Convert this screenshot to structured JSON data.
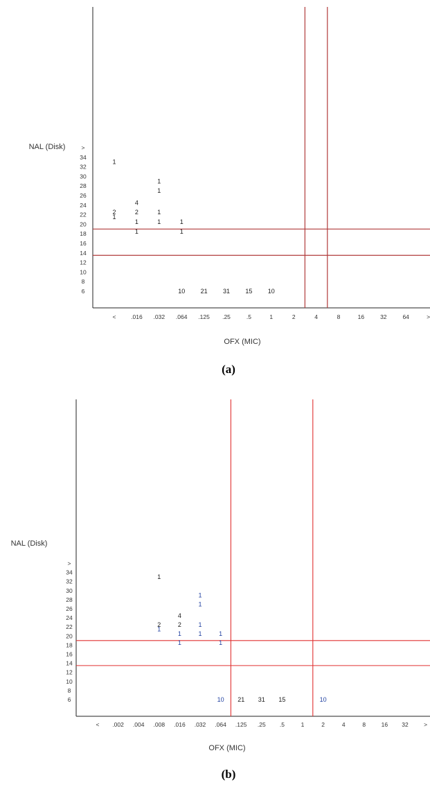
{
  "chart_data": [
    {
      "type": "scatter",
      "caption": "(a)",
      "xlabel": "OFX (MIC)",
      "ylabel": "NAL (Disk)",
      "x_ticks": [
        "<",
        ".016",
        ".032",
        ".064",
        ".125",
        ".25",
        ".5",
        "1",
        "2",
        "4",
        "8",
        "16",
        "32",
        "64",
        ">"
      ],
      "y_ticks": [
        "6",
        "8",
        "10",
        "12",
        "14",
        "16",
        "18",
        "20",
        "22",
        "24",
        "26",
        "28",
        "30",
        "32",
        "34",
        ">"
      ],
      "count_color": "#1a1a1a",
      "vertical_lines_after_category": [
        "2",
        "4"
      ],
      "horizontal_lines_y": [
        19,
        13.5
      ],
      "line_color": "#b03a3a",
      "cells": [
        {
          "x": "<",
          "y": 33,
          "label": "1"
        },
        {
          "x": "<",
          "y": 22.5,
          "label": "2"
        },
        {
          "x": "<",
          "y": 21.5,
          "label": "1"
        },
        {
          "x": ".016",
          "y": 24.5,
          "label": "4"
        },
        {
          "x": ".016",
          "y": 22.5,
          "label": "2"
        },
        {
          "x": ".016",
          "y": 20.5,
          "label": "1"
        },
        {
          "x": ".016",
          "y": 18.5,
          "label": "1"
        },
        {
          "x": ".032",
          "y": 29,
          "label": "1"
        },
        {
          "x": ".032",
          "y": 27,
          "label": "1"
        },
        {
          "x": ".032",
          "y": 22.5,
          "label": "1"
        },
        {
          "x": ".032",
          "y": 20.5,
          "label": "1"
        },
        {
          "x": ".064",
          "y": 20.5,
          "label": "1"
        },
        {
          "x": ".064",
          "y": 18.5,
          "label": "1"
        },
        {
          "x": ".064",
          "y": 6,
          "label": "10"
        },
        {
          "x": ".125",
          "y": 6,
          "label": "21"
        },
        {
          "x": ".25",
          "y": 6,
          "label": "31"
        },
        {
          "x": ".5",
          "y": 6,
          "label": "15"
        },
        {
          "x": "1",
          "y": 6,
          "label": "10"
        }
      ]
    },
    {
      "type": "scatter",
      "caption": "(b)",
      "xlabel": "OFX (MIC)",
      "ylabel": "NAL (Disk)",
      "x_ticks": [
        "<",
        ".002",
        ".004",
        ".008",
        ".016",
        ".032",
        ".064",
        ".125",
        ".25",
        ".5",
        "1",
        "2",
        "4",
        "8",
        "16",
        "32",
        ">"
      ],
      "y_ticks": [
        "6",
        "8",
        "10",
        "12",
        "14",
        "16",
        "18",
        "20",
        "22",
        "24",
        "26",
        "28",
        "30",
        "32",
        "34",
        ">"
      ],
      "count_color": "#1a1a1a",
      "blue_color": "#1f3fa0",
      "vertical_lines_after_category": [
        ".064",
        "1"
      ],
      "horizontal_lines_y": [
        19,
        13.5
      ],
      "line_color": "#e03030",
      "cells": [
        {
          "x": ".008",
          "y": 33,
          "label": "1",
          "blue": false
        },
        {
          "x": ".008",
          "y": 22.5,
          "label": "2",
          "blue": false
        },
        {
          "x": ".008",
          "y": 21.5,
          "label": "1",
          "blue": true
        },
        {
          "x": ".016",
          "y": 24.5,
          "label": "4",
          "blue": false
        },
        {
          "x": ".016",
          "y": 22.5,
          "label": "2",
          "blue": false
        },
        {
          "x": ".016",
          "y": 20.5,
          "label": "1",
          "blue": true
        },
        {
          "x": ".016",
          "y": 18.5,
          "label": "1",
          "blue": true
        },
        {
          "x": ".032",
          "y": 29,
          "label": "1",
          "blue": true
        },
        {
          "x": ".032",
          "y": 27,
          "label": "1",
          "blue": true
        },
        {
          "x": ".032",
          "y": 22.5,
          "label": "1",
          "blue": true
        },
        {
          "x": ".032",
          "y": 20.5,
          "label": "1",
          "blue": true
        },
        {
          "x": ".064",
          "y": 20.5,
          "label": "1",
          "blue": true
        },
        {
          "x": ".064",
          "y": 18.5,
          "label": "1",
          "blue": true
        },
        {
          "x": ".064",
          "y": 6,
          "label": "10",
          "blue": true
        },
        {
          "x": ".125",
          "y": 6,
          "label": "21",
          "blue": false
        },
        {
          "x": ".25",
          "y": 6,
          "label": "31",
          "blue": false
        },
        {
          "x": ".5",
          "y": 6,
          "label": "15",
          "blue": false
        },
        {
          "x": "2",
          "y": 6,
          "label": "10",
          "blue": true
        }
      ]
    }
  ]
}
